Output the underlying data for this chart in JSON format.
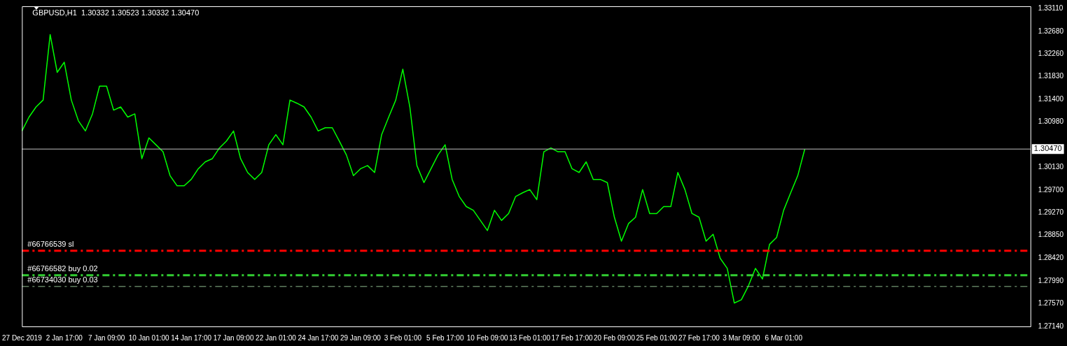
{
  "chart_data": {
    "type": "line",
    "title": "GBPUSD,H1  1.30332 1.30523 1.30332 1.30470",
    "categories": [
      "27 Dec 2019",
      null,
      null,
      null,
      null,
      null,
      "2 Jan 17:00",
      null,
      null,
      null,
      null,
      null,
      "7 Jan 09:00",
      null,
      null,
      null,
      null,
      null,
      "10 Jan 01:00",
      null,
      null,
      null,
      null,
      null,
      "14 Jan 17:00",
      null,
      null,
      null,
      null,
      null,
      "17 Jan 09:00",
      null,
      null,
      null,
      null,
      null,
      "22 Jan 01:00",
      null,
      null,
      null,
      null,
      null,
      "24 Jan 17:00",
      null,
      null,
      null,
      null,
      null,
      "29 Jan 09:00",
      null,
      null,
      null,
      null,
      null,
      "3 Feb 01:00",
      null,
      null,
      null,
      null,
      null,
      "5 Feb 17:00",
      null,
      null,
      null,
      null,
      null,
      "10 Feb 09:00",
      null,
      null,
      null,
      null,
      null,
      "13 Feb 01:00",
      null,
      null,
      null,
      null,
      null,
      "17 Feb 17:00",
      null,
      null,
      null,
      null,
      null,
      "20 Feb 09:00",
      null,
      null,
      null,
      null,
      null,
      "25 Feb 01:00",
      null,
      null,
      null,
      null,
      null,
      "27 Feb 17:00",
      null,
      null,
      null,
      null,
      null,
      "3 Mar 09:00",
      null,
      null,
      null,
      null,
      null,
      "6 Mar 01:00",
      null,
      null,
      null,
      null,
      null,
      null,
      null,
      null,
      null,
      null,
      null,
      null,
      null,
      null,
      null,
      null,
      null,
      null,
      null,
      null,
      null,
      null,
      null,
      null,
      null,
      null,
      null,
      null,
      null,
      null,
      null,
      null,
      null,
      null,
      null
    ],
    "series": [
      {
        "color": "#00ff00",
        "values": [
          1.3081,
          1.3107,
          1.3126,
          1.3139,
          1.3262,
          1.3191,
          1.321,
          1.3139,
          1.31,
          1.3081,
          1.3113,
          1.3165,
          1.3165,
          1.312,
          1.3126,
          1.3107,
          1.3113,
          1.3029,
          1.3068,
          1.3055,
          1.3042,
          1.2997,
          1.2978,
          1.2978,
          1.299,
          1.301,
          1.3023,
          1.3029,
          1.3049,
          1.3062,
          1.3081,
          1.3029,
          1.3003,
          1.299,
          1.3003,
          1.3055,
          1.3074,
          1.3055,
          1.3139,
          1.3133,
          1.3126,
          1.3107,
          1.3081,
          1.3087,
          1.3087,
          1.3062,
          1.3036,
          1.2997,
          1.301,
          1.3016,
          1.3003,
          1.3074,
          1.3107,
          1.3139,
          1.3197,
          1.3126,
          1.3016,
          1.2984,
          1.301,
          1.3036,
          1.3055,
          1.299,
          1.2958,
          1.2939,
          1.2932,
          1.2913,
          1.2894,
          1.2932,
          1.2913,
          1.2926,
          1.2958,
          1.2965,
          1.2971,
          1.2952,
          1.3042,
          1.3049,
          1.3042,
          1.3042,
          1.301,
          1.3003,
          1.3023,
          1.299,
          1.299,
          1.2984,
          1.2919,
          1.2874,
          1.2907,
          1.2919,
          1.2971,
          1.2926,
          1.2926,
          1.2939,
          1.2939,
          1.3003,
          1.2971,
          1.2926,
          1.2919,
          1.2874,
          1.2887,
          1.2842,
          1.2823,
          1.2758,
          1.2764,
          1.279,
          1.2823,
          1.2803,
          1.2868,
          1.2881,
          1.2932,
          1.2965,
          1.2997,
          1.3047,
          null,
          null,
          null,
          null,
          null,
          null,
          null,
          null,
          null,
          null,
          null,
          null,
          null,
          null,
          null,
          null,
          null,
          null,
          null,
          null,
          null,
          null,
          null,
          null,
          null,
          null,
          null,
          null,
          null,
          null,
          null,
          null
        ]
      }
    ],
    "ylim": [
      1.2714,
      1.3315
    ],
    "yticks": [
      {
        "value": 1.2714,
        "label": "1.27140"
      },
      {
        "value": 1.2757,
        "label": "1.27570"
      },
      {
        "value": 1.2799,
        "label": "1.27990"
      },
      {
        "value": 1.2842,
        "label": "1.28420"
      },
      {
        "value": 1.2885,
        "label": "1.28850"
      },
      {
        "value": 1.2927,
        "label": "1.29270"
      },
      {
        "value": 1.297,
        "label": "1.29700"
      },
      {
        "value": 1.3013,
        "label": "1.30130"
      },
      {
        "value": 1.3098,
        "label": "1.30980"
      },
      {
        "value": 1.314,
        "label": "1.31400"
      },
      {
        "value": 1.3183,
        "label": "1.31830"
      },
      {
        "value": 1.3226,
        "label": "1.32260"
      },
      {
        "value": 1.3268,
        "label": "1.32680"
      },
      {
        "value": 1.3311,
        "label": "1.33110"
      }
    ],
    "marker": "none",
    "ref_lines": [
      {
        "axis": "y",
        "value": 1.3047,
        "label": "1.30470",
        "color": "#c0c0c0",
        "line_style": "solid"
      },
      {
        "axis": "y",
        "value": 1.2856,
        "label": "#66766539 sl",
        "color": "#ff0000",
        "line_style": "dashed"
      },
      {
        "axis": "y",
        "value": 1.281,
        "label": "#66766582 buy 0.02",
        "color": "#32cd32",
        "line_style": "dashed"
      },
      {
        "axis": "y",
        "value": 1.2789,
        "label": "#66734030 buy 0.03",
        "color": "#8fbc8f",
        "line_style": "dashed"
      }
    ]
  }
}
